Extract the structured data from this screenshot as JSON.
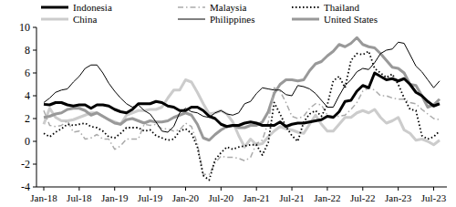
{
  "chart_data": {
    "type": "line",
    "categories": [
      "Jan-18",
      null,
      null,
      null,
      null,
      null,
      "Jul-18",
      null,
      null,
      null,
      null,
      null,
      "Jan-19",
      null,
      null,
      null,
      null,
      null,
      "Jul-19",
      null,
      null,
      null,
      null,
      null,
      "Jan-20",
      null,
      null,
      null,
      null,
      null,
      "Jul-20",
      null,
      null,
      null,
      null,
      null,
      "Jan-21",
      null,
      null,
      null,
      null,
      null,
      "Jul-21",
      null,
      null,
      null,
      null,
      null,
      "Jan-22",
      null,
      null,
      null,
      null,
      null,
      "Jul-22",
      null,
      null,
      null,
      null,
      null,
      "Jan-23",
      null,
      null,
      null,
      null,
      null,
      "Jul-23",
      null
    ],
    "ylim": [
      -4,
      10
    ],
    "yticks": [
      -4,
      -2,
      0,
      2,
      4,
      6,
      8,
      10
    ],
    "grid": false,
    "legend": "top",
    "series": [
      {
        "name": "Indonesia",
        "color": "#000000",
        "line_style": "solid",
        "values": [
          3.25,
          3.2,
          3.4,
          3.4,
          3.2,
          3.1,
          3.2,
          3.2,
          2.9,
          3.2,
          3.2,
          3.1,
          2.8,
          2.6,
          2.5,
          2.8,
          3.3,
          3.3,
          3.3,
          3.5,
          3.4,
          3.1,
          3.0,
          2.7,
          2.7,
          3.0,
          3.0,
          2.7,
          2.2,
          2.0,
          1.5,
          1.3,
          1.4,
          1.4,
          1.6,
          1.7,
          1.6,
          1.4,
          1.4,
          1.4,
          1.7,
          1.3,
          1.5,
          1.6,
          1.6,
          1.7,
          1.8,
          1.9,
          2.2,
          2.1,
          2.6,
          3.5,
          3.6,
          4.4,
          4.9,
          4.7,
          6.0,
          5.7,
          5.4,
          5.5,
          5.3,
          5.5,
          5.0,
          4.3,
          4.0,
          3.5,
          3.1,
          3.3
        ]
      },
      {
        "name": "Malaysia",
        "color": "#aaaaaa",
        "line_style": "dashdot",
        "values": [
          2.7,
          1.4,
          1.3,
          1.4,
          1.8,
          0.8,
          0.9,
          0.2,
          0.3,
          0.6,
          0.2,
          0.2,
          -0.7,
          -0.4,
          0.2,
          0.2,
          0.2,
          1.5,
          1.4,
          1.5,
          1.1,
          1.1,
          0.9,
          1.0,
          1.6,
          1.3,
          -0.2,
          -2.9,
          -2.9,
          -1.9,
          -1.3,
          -1.4,
          -1.4,
          -1.5,
          -1.7,
          -1.4,
          -0.2,
          0.1,
          1.7,
          4.7,
          4.4,
          3.4,
          2.2,
          2.0,
          2.2,
          2.9,
          3.3,
          3.2,
          2.3,
          2.2,
          2.2,
          2.3,
          2.8,
          3.4,
          4.4,
          4.7,
          4.5,
          4.0,
          4.0,
          3.8,
          3.7,
          3.7,
          3.4,
          3.3,
          2.8,
          2.4,
          2.0,
          1.9
        ]
      },
      {
        "name": "Thailand",
        "color": "#000000",
        "line_style": "dotted",
        "values": [
          0.7,
          0.4,
          0.8,
          1.1,
          1.5,
          1.4,
          1.5,
          1.6,
          1.3,
          1.2,
          0.9,
          0.4,
          0.3,
          0.7,
          1.2,
          1.2,
          1.2,
          0.9,
          1.0,
          0.5,
          0.3,
          0.1,
          0.2,
          0.9,
          1.1,
          0.7,
          -0.5,
          -3.0,
          -3.4,
          -1.6,
          -1.0,
          -0.5,
          -0.7,
          -0.5,
          -0.4,
          -0.3,
          -0.3,
          -1.2,
          -0.1,
          3.4,
          2.4,
          1.3,
          0.5,
          0.0,
          1.7,
          2.4,
          2.7,
          2.2,
          3.2,
          5.3,
          5.7,
          4.7,
          7.1,
          7.7,
          7.6,
          7.9,
          6.4,
          6.0,
          5.6,
          5.9,
          5.0,
          3.8,
          2.8,
          2.7,
          0.5,
          0.2,
          0.4,
          0.9
        ]
      },
      {
        "name": "China",
        "color": "#cccccc",
        "line_style": "solid",
        "values": [
          1.5,
          2.9,
          2.1,
          1.8,
          1.8,
          1.9,
          2.1,
          2.3,
          2.5,
          2.5,
          2.2,
          1.9,
          1.7,
          1.5,
          2.3,
          2.5,
          2.7,
          2.7,
          2.8,
          2.8,
          3.0,
          3.8,
          4.5,
          4.5,
          5.4,
          5.2,
          4.3,
          3.3,
          2.4,
          2.5,
          2.7,
          2.4,
          1.7,
          0.5,
          -0.5,
          0.2,
          -0.3,
          -0.2,
          0.4,
          0.9,
          1.3,
          1.1,
          1.0,
          0.8,
          0.7,
          1.5,
          2.3,
          1.5,
          0.9,
          0.9,
          1.5,
          2.1,
          2.1,
          2.5,
          2.7,
          2.5,
          2.8,
          2.1,
          1.6,
          1.8,
          2.1,
          1.0,
          0.7,
          0.1,
          0.2,
          0.0,
          -0.3,
          0.1
        ]
      },
      {
        "name": "Philippines",
        "color": "#000000",
        "line_style": "solid",
        "values": [
          3.4,
          3.8,
          4.3,
          4.5,
          4.6,
          5.2,
          5.7,
          6.4,
          6.7,
          6.7,
          6.0,
          5.1,
          4.4,
          3.8,
          3.3,
          3.0,
          3.2,
          2.7,
          2.4,
          1.7,
          0.9,
          0.8,
          1.3,
          2.5,
          2.9,
          2.6,
          2.5,
          2.2,
          2.1,
          2.5,
          2.7,
          2.4,
          2.3,
          2.5,
          3.3,
          3.5,
          4.2,
          4.7,
          4.6,
          4.5,
          4.5,
          4.1,
          4.0,
          4.9,
          4.8,
          4.6,
          4.2,
          3.6,
          3.0,
          3.0,
          4.0,
          4.9,
          5.4,
          6.1,
          6.4,
          6.3,
          6.9,
          7.7,
          8.0,
          8.1,
          8.7,
          8.6,
          7.6,
          6.6,
          6.1,
          5.4,
          4.7,
          5.3
        ]
      },
      {
        "name": "United States",
        "color": "#999999",
        "line_style": "solid",
        "values": [
          2.1,
          2.2,
          2.4,
          2.5,
          2.8,
          2.9,
          2.9,
          2.7,
          2.3,
          2.5,
          2.2,
          1.9,
          1.6,
          1.5,
          1.9,
          2.0,
          1.8,
          1.6,
          1.8,
          1.7,
          1.7,
          1.8,
          2.1,
          2.3,
          2.5,
          2.3,
          1.5,
          0.3,
          0.1,
          0.6,
          1.0,
          1.3,
          1.4,
          1.2,
          1.2,
          1.4,
          1.4,
          1.7,
          2.6,
          4.2,
          5.0,
          5.4,
          5.4,
          5.3,
          5.4,
          6.2,
          6.8,
          7.0,
          7.5,
          7.9,
          8.5,
          8.3,
          8.6,
          9.1,
          8.5,
          8.3,
          8.2,
          7.7,
          7.1,
          6.5,
          6.4,
          6.0,
          5.0,
          4.9,
          4.0,
          3.0,
          3.2,
          3.7
        ]
      }
    ]
  }
}
